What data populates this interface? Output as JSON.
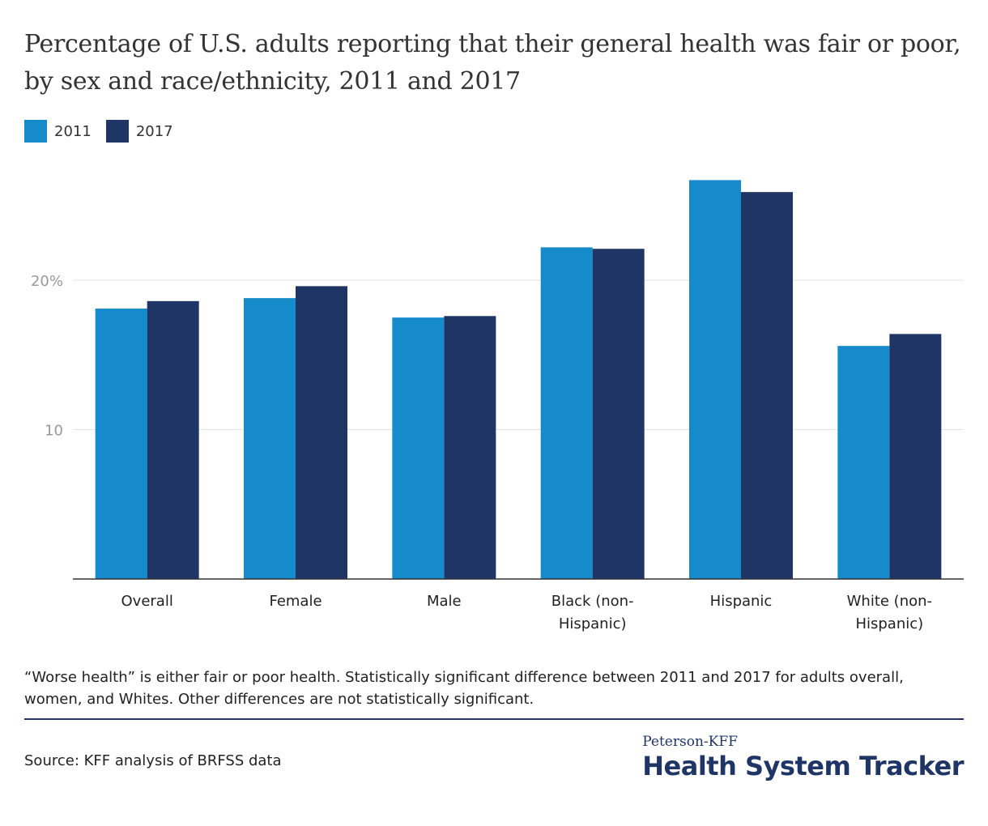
{
  "chart_data": {
    "type": "bar",
    "title": "Percentage of U.S. adults reporting that their general health was fair or poor, by sex and race/ethnicity, 2011 and 2017",
    "categories": [
      "Overall",
      "Female",
      "Male",
      "Black (non-Hispanic)",
      "Hispanic",
      "White (non-Hispanic)"
    ],
    "category_lines": [
      [
        "Overall"
      ],
      [
        "Female"
      ],
      [
        "Male"
      ],
      [
        "Black (non-",
        "Hispanic)"
      ],
      [
        "Hispanic"
      ],
      [
        "White (non-",
        "Hispanic)"
      ]
    ],
    "series": [
      {
        "name": "2011",
        "color": "#168bcc",
        "values": [
          18.1,
          18.8,
          17.5,
          22.2,
          26.7,
          15.6
        ]
      },
      {
        "name": "2017",
        "color": "#1f3566",
        "values": [
          18.6,
          19.6,
          17.6,
          22.1,
          25.9,
          16.4
        ]
      }
    ],
    "yticks": [
      {
        "value": 10,
        "label": "10"
      },
      {
        "value": 20,
        "label": "20%"
      }
    ],
    "ylim": [
      0,
      29
    ],
    "grid": true,
    "legend": "top-left",
    "xlabel": "",
    "ylabel": ""
  },
  "note": "“Worse health” is either fair or poor health. Statistically significant difference between 2011 and 2017 for adults overall, women, and Whites. Other differences are not statistically significant.",
  "source": "Source: KFF analysis of BRFSS data",
  "logo": {
    "top": "Peterson-KFF",
    "main": "Health System Tracker"
  }
}
